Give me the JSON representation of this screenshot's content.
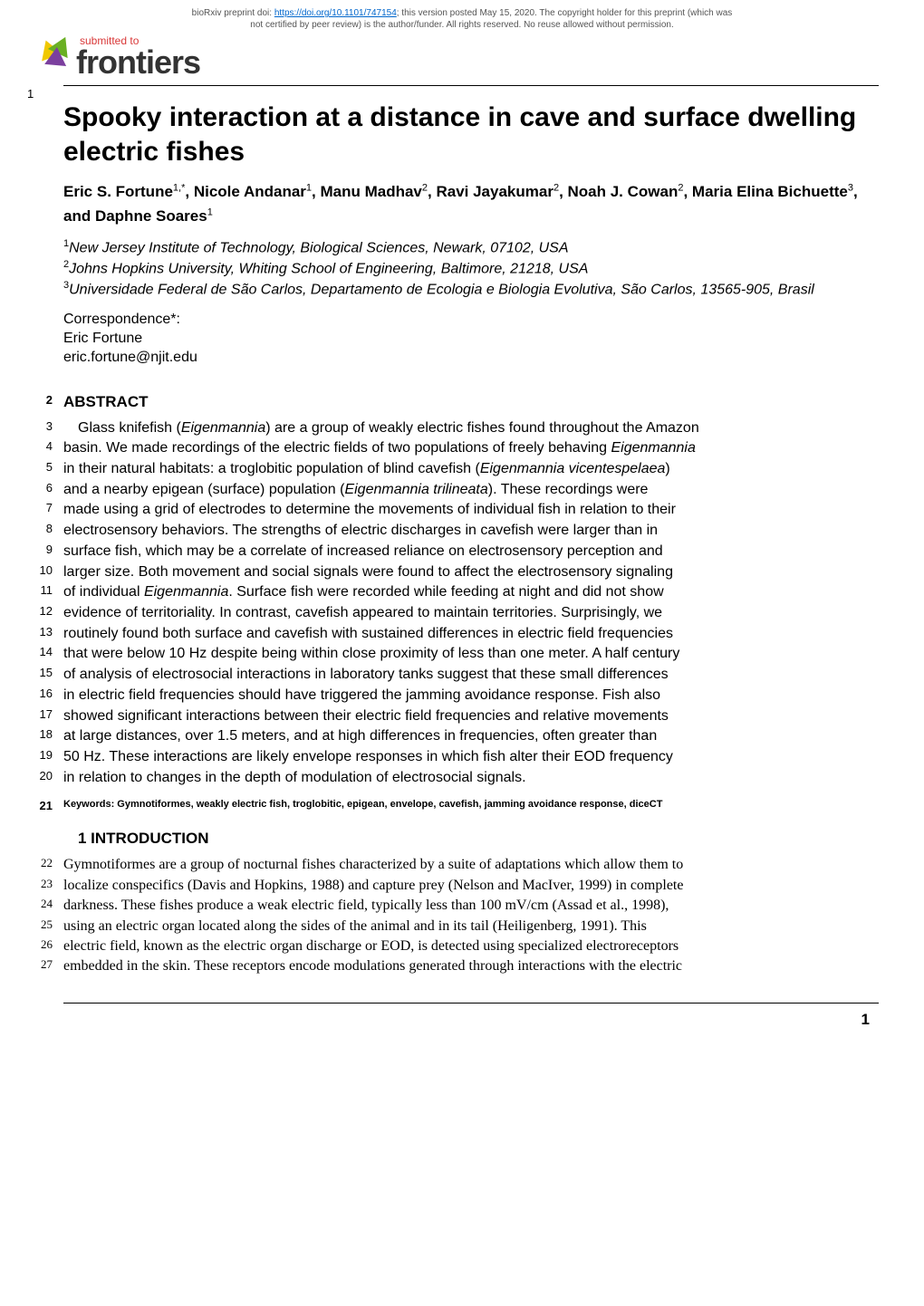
{
  "preprint": {
    "text_prefix": "bioRxiv preprint doi: ",
    "doi_url": "https://doi.org/10.1101/747154",
    "text_middle": "; this version posted May 15, 2020. The copyright holder for this preprint (which was",
    "text_line2": "not certified by peer review) is the author/funder. All rights reserved. No reuse allowed without permission."
  },
  "logo": {
    "submitted_to": "submitted to",
    "brand": "frontiers"
  },
  "line_number_1": "1",
  "title": "Spooky interaction at a distance in cave and surface dwelling electric fishes",
  "authors_html": "Eric S. Fortune<sup>1,*</sup>, Nicole Andanar<sup>1</sup>, Manu Madhav<sup>2</sup>, Ravi Jayakumar<sup>2</sup>, Noah J. Cowan<sup>2</sup>, Maria Elina Bichuette<sup>3</sup>, and Daphne Soares<sup>1</sup>",
  "affiliations": [
    {
      "sup": "1",
      "text": "New Jersey Institute of Technology, Biological Sciences, Newark, 07102, USA"
    },
    {
      "sup": "2",
      "text": "Johns Hopkins University, Whiting School of Engineering, Baltimore, 21218, USA"
    },
    {
      "sup": "3",
      "text": "Universidade Federal de São Carlos, Departamento de Ecologia e Biologia Evolutiva, São Carlos, 13565-905, Brasil"
    }
  ],
  "correspondence": {
    "label": "Correspondence*:",
    "name": "Eric Fortune",
    "email": "eric.fortune@njit.edu"
  },
  "abstract_heading_num": "2",
  "abstract_heading": "ABSTRACT",
  "abstract_lines": [
    {
      "num": "3",
      "text": "Glass knifefish (Eigenmannia) are a group of weakly electric fishes found throughout the Amazon",
      "first": true
    },
    {
      "num": "4",
      "text": "basin. We made recordings of the electric fields of two populations of freely behaving Eigenmannia"
    },
    {
      "num": "5",
      "text": "in their natural habitats: a troglobitic population of blind cavefish (Eigenmannia vicentespelaea)"
    },
    {
      "num": "6",
      "text": "and a nearby epigean (surface) population (Eigenmannia trilineata). These recordings were"
    },
    {
      "num": "7",
      "text": "made using a grid of electrodes to determine the movements of individual fish in relation to their"
    },
    {
      "num": "8",
      "text": "electrosensory behaviors. The strengths of electric discharges in cavefish were larger than in"
    },
    {
      "num": "9",
      "text": "surface fish, which may be a correlate of increased reliance on electrosensory perception and"
    },
    {
      "num": "10",
      "text": "larger size. Both movement and social signals were found to affect the electrosensory signaling"
    },
    {
      "num": "11",
      "text": "of individual Eigenmannia. Surface fish were recorded while feeding at night and did not show"
    },
    {
      "num": "12",
      "text": "evidence of territoriality. In contrast, cavefish appeared to maintain territories. Surprisingly, we"
    },
    {
      "num": "13",
      "text": "routinely found both surface and cavefish with sustained differences in electric field frequencies"
    },
    {
      "num": "14",
      "text": "that were below 10 Hz despite being within close proximity of less than one meter. A half century"
    },
    {
      "num": "15",
      "text": "of analysis of electrosocial interactions in laboratory tanks suggest that these small differences"
    },
    {
      "num": "16",
      "text": "in electric field frequencies should have triggered the jamming avoidance response. Fish also"
    },
    {
      "num": "17",
      "text": "showed significant interactions between their electric field frequencies and relative movements"
    },
    {
      "num": "18",
      "text": "at large distances, over 1.5 meters, and at high differences in frequencies, often greater than"
    },
    {
      "num": "19",
      "text": "50 Hz. These interactions are likely envelope responses in which fish alter their EOD frequency"
    },
    {
      "num": "20",
      "text": "in relation to changes in the depth of modulation of electrosocial signals."
    }
  ],
  "keywords_num": "21",
  "keywords": "Keywords: Gymnotiformes, weakly electric fish, troglobitic, epigean, envelope, cavefish, jamming avoidance response, diceCT",
  "intro_heading": "1   INTRODUCTION",
  "intro_lines": [
    {
      "num": "22",
      "text": "Gymnotiformes are a group of nocturnal fishes characterized by a suite of adaptations which allow them to"
    },
    {
      "num": "23",
      "text": "localize conspecifics (Davis and Hopkins, 1988) and capture prey (Nelson and MacIver, 1999) in complete"
    },
    {
      "num": "24",
      "text": "darkness. These fishes produce a weak electric field, typically less than 100 mV/cm (Assad et al., 1998),"
    },
    {
      "num": "25",
      "text": "using an electric organ located along the sides of the animal and in its tail (Heiligenberg, 1991). This"
    },
    {
      "num": "26",
      "text": "electric field, known as the electric organ discharge or EOD, is detected using specialized electroreceptors"
    },
    {
      "num": "27",
      "text": "embedded in the skin. These receptors encode modulations generated through interactions with the electric"
    }
  ],
  "page_number": "1"
}
